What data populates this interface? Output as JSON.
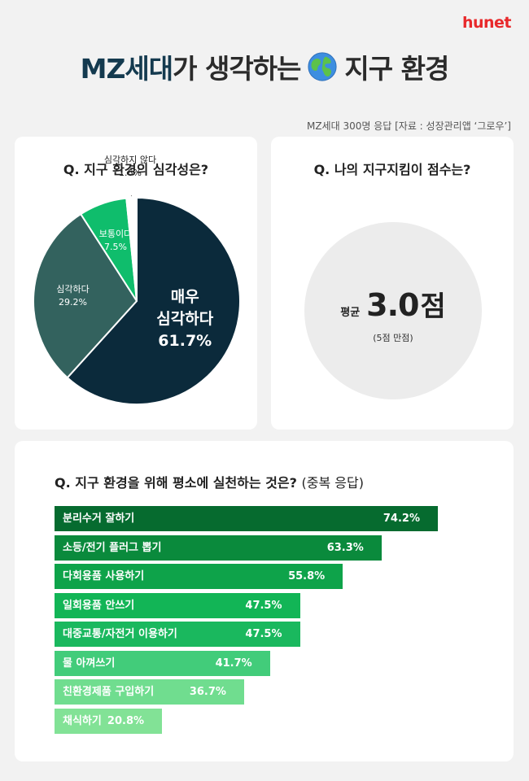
{
  "brand": "hunet",
  "title": {
    "accent": "MZ세대",
    "rest1": "가 생각하는",
    "rest2": "지구 환경"
  },
  "source": "MZ세대 300명 응답 [자료 : 성장관리앱 ‘그로우’]",
  "colors": {
    "pie": [
      "#0b2a3b",
      "#33625e",
      "#0fbd6c",
      "#ffffff"
    ],
    "bars": [
      "#066b2f",
      "#0a8a3c",
      "#0ea34a",
      "#12b556",
      "#1ab85e",
      "#42cc7a",
      "#70dd8f",
      "#82e296"
    ]
  },
  "chart_data": [
    {
      "type": "pie",
      "title": "Q. 지구 환경의 심각성은?",
      "categories": [
        "매우 심각하다",
        "심각하다",
        "보통이다",
        "심각하지 않다"
      ],
      "label_lines": [
        [
          "매우",
          "심각하다",
          "61.7%"
        ],
        [
          "심각하다",
          "29.2%"
        ],
        [
          "보통이다",
          "7.5%"
        ],
        [
          "심각하지 않다",
          "1.6%"
        ]
      ],
      "values": [
        61.7,
        29.2,
        7.5,
        1.6
      ]
    },
    {
      "type": "table",
      "title": "Q. 나의 지구지킴이 점수는?",
      "prefix": "평균",
      "value": "3.0",
      "unit": "점",
      "note": "(5점 만점)"
    },
    {
      "type": "bar",
      "title": "Q. 지구 환경을 위해 평소에 실천하는 것은?",
      "title_suffix": "(중복 응답)",
      "categories": [
        "분리수거 잘하기",
        "소등/전기 플러그 뽑기",
        "다회용품 사용하기",
        "일회용품 안쓰기",
        "대중교통/자전거 이용하기",
        "물 아껴쓰기",
        "친환경제품 구입하기",
        "채식하기"
      ],
      "values": [
        74.2,
        63.3,
        55.8,
        47.5,
        47.5,
        41.7,
        36.7,
        20.8
      ],
      "value_labels": [
        "74.2%",
        "63.3%",
        "55.8%",
        "47.5%",
        "47.5%",
        "41.7%",
        "36.7%",
        "20.8%"
      ]
    }
  ]
}
